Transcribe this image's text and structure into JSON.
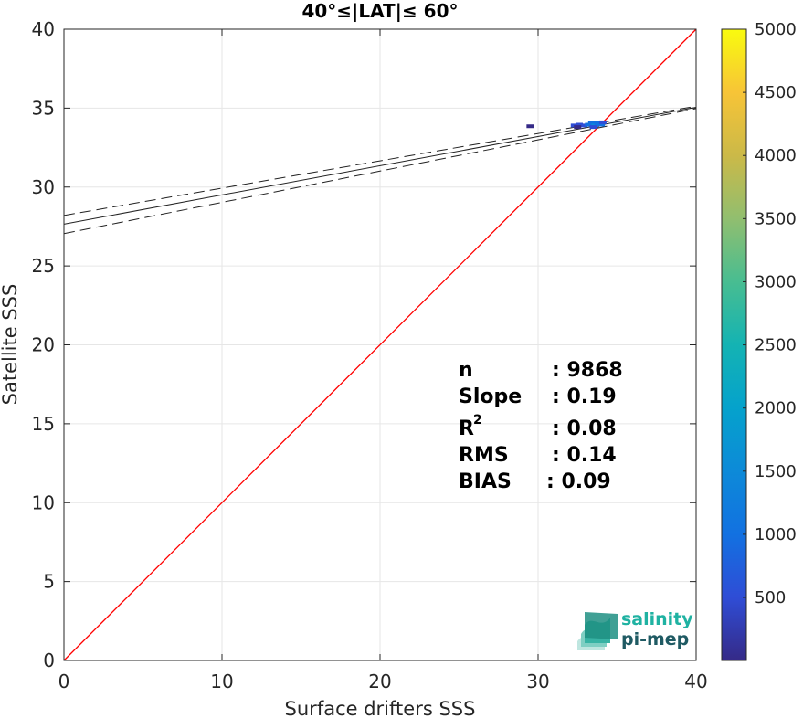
{
  "chart_data": {
    "type": "scatter",
    "title": "40°≤|LAT|≤ 60°",
    "xlabel": "Surface drifters SSS",
    "ylabel": "Satellite SSS",
    "xlim": [
      0,
      40
    ],
    "ylim": [
      0,
      40
    ],
    "xticks": [
      "0",
      "10",
      "20",
      "30",
      "40"
    ],
    "yticks": [
      "0",
      "5",
      "10",
      "15",
      "20",
      "25",
      "30",
      "35",
      "40"
    ],
    "grid": true,
    "reference_line": {
      "type": "one-to-one",
      "color": "#ff0000"
    },
    "regression": {
      "fit": {
        "intercept": 27.65,
        "slope": 0.185
      },
      "upper": {
        "intercept": 28.2,
        "slope": 0.173
      },
      "lower": {
        "intercept": 27.05,
        "slope": 0.198
      }
    },
    "density_points": [
      {
        "x": 29.5,
        "y": 33.85,
        "density": 150
      },
      {
        "x": 32.3,
        "y": 33.9,
        "density": 300
      },
      {
        "x": 32.6,
        "y": 33.95,
        "density": 400
      },
      {
        "x": 32.9,
        "y": 33.9,
        "density": 600
      },
      {
        "x": 33.2,
        "y": 33.95,
        "density": 900
      },
      {
        "x": 33.4,
        "y": 34.05,
        "density": 1100
      },
      {
        "x": 33.6,
        "y": 33.9,
        "density": 1300
      },
      {
        "x": 33.8,
        "y": 34.05,
        "density": 1200
      },
      {
        "x": 34.0,
        "y": 33.95,
        "density": 900
      },
      {
        "x": 33.5,
        "y": 33.8,
        "density": 700
      },
      {
        "x": 32.5,
        "y": 33.8,
        "density": 250
      },
      {
        "x": 34.1,
        "y": 34.1,
        "density": 500
      }
    ],
    "colorbar": {
      "min": 1,
      "max": 5000,
      "ticks": [
        "500",
        "1000",
        "1500",
        "2000",
        "2500",
        "3000",
        "3500",
        "4000",
        "4500",
        "5000"
      ],
      "colormap": "parula"
    },
    "annotations": {
      "n_label": "n",
      "n_value": ": 9868",
      "slope_label": "Slope",
      "slope_value": ": 0.19",
      "r2_label": "R",
      "r2_sup": "2",
      "r2_value": ": 0.08",
      "rms_label": "RMS",
      "rms_value": ": 0.14",
      "bias_label": "BIAS",
      "bias_value": ": 0.09"
    }
  },
  "logo": {
    "line1": "salinity",
    "line2": "pi-mep",
    "color1": "#1fb2a2",
    "color2": "#1f5a63"
  }
}
